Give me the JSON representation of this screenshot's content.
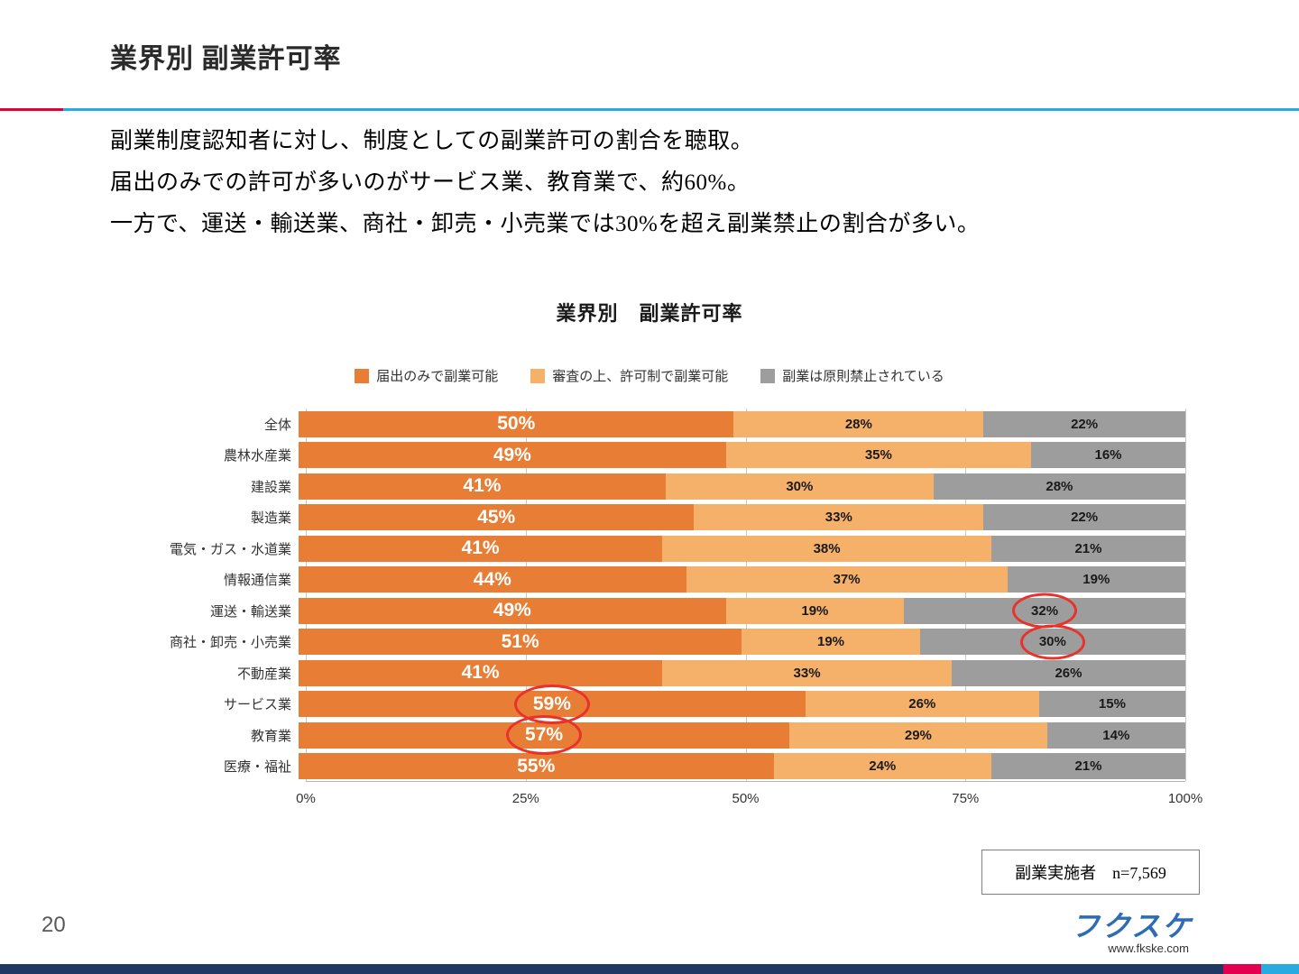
{
  "page": {
    "title": "業界別 副業許可率",
    "page_number": "20",
    "website": "www.fkske.com",
    "logo_text": "フクスケ",
    "body_lines": {
      "line1": "副業制度認知者に対し、制度としての副業許可の割合を聴取。",
      "line2": "届出のみでの許可が多いのがサービス業、教育業で、約60%。",
      "line3": "一方で、運送・輸送業、商社・卸売・小売業では30%を超え副業禁止の割合が多い。"
    },
    "note": "副業実施者　n=7,569"
  },
  "colors": {
    "accent_cyan": "#29abe2",
    "accent_red": "#e60038",
    "circle_red": "#e8322b",
    "strip_navy": "#1f3864",
    "strip_magenta": "#e5004f"
  },
  "chart_data": {
    "type": "bar",
    "stacked": true,
    "orientation": "horizontal",
    "title": "業界別　副業許可率",
    "categories": [
      "全体",
      "農林水産業",
      "建設業",
      "製造業",
      "電気・ガス・水道業",
      "情報通信業",
      "運送・輸送業",
      "商社・卸売・小売業",
      "不動産業",
      "サービス業",
      "教育業",
      "医療・福祉"
    ],
    "series": [
      {
        "name": "届出のみで副業可能",
        "color": "#e87d35",
        "values": [
          50,
          49,
          41,
          45,
          41,
          44,
          49,
          51,
          41,
          59,
          57,
          55
        ]
      },
      {
        "name": "審査の上、許可制で副業可能",
        "color": "#f5b06a",
        "values": [
          28,
          35,
          30,
          33,
          38,
          37,
          19,
          19,
          33,
          26,
          29,
          24
        ]
      },
      {
        "name": "副業は原則禁止されている",
        "color": "#9d9d9d",
        "values": [
          22,
          16,
          28,
          22,
          21,
          19,
          32,
          30,
          26,
          15,
          14,
          21
        ]
      }
    ],
    "x_ticks": [
      {
        "label": "0%",
        "pos": 0
      },
      {
        "label": "25%",
        "pos": 25
      },
      {
        "label": "50%",
        "pos": 50
      },
      {
        "label": "75%",
        "pos": 75
      },
      {
        "label": "100%",
        "pos": 100
      }
    ],
    "xlim": [
      0,
      100
    ],
    "grid": true,
    "legend_position": "top",
    "value_suffix": "%",
    "circled_values": [
      {
        "category_index": 6,
        "series_index": 2
      },
      {
        "category_index": 7,
        "series_index": 2
      },
      {
        "category_index": 9,
        "series_index": 0
      },
      {
        "category_index": 10,
        "series_index": 0
      }
    ]
  }
}
